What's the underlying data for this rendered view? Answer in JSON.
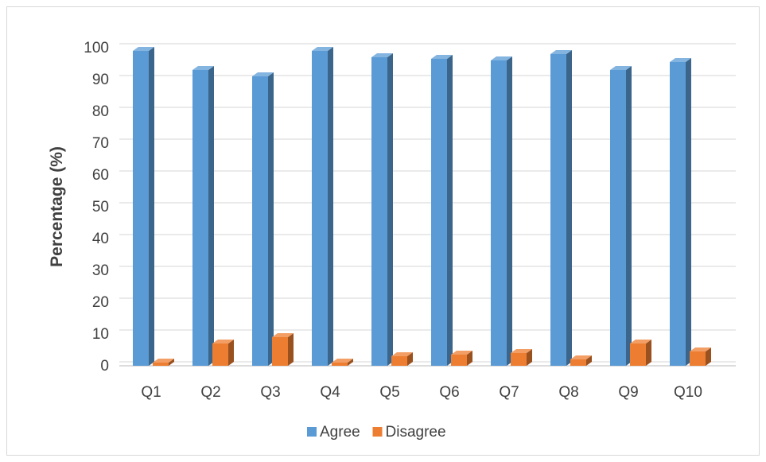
{
  "chart_data": {
    "type": "bar",
    "title": "",
    "xlabel": "",
    "ylabel": "Percentage (%)",
    "categories": [
      "Q1",
      "Q2",
      "Q3",
      "Q4",
      "Q5",
      "Q6",
      "Q7",
      "Q8",
      "Q9",
      "Q10"
    ],
    "series": [
      {
        "name": "Agree",
        "color": "#5b9bd5",
        "values": [
          99,
          93,
          91,
          99,
          97,
          96.5,
          96,
          98,
          93,
          95.5
        ]
      },
      {
        "name": "Disagree",
        "color": "#ed7d31",
        "values": [
          1,
          7,
          9,
          1,
          3,
          3.5,
          4,
          2,
          7,
          4.5
        ]
      }
    ],
    "yticks": [
      "0",
      "10",
      "20",
      "30",
      "40",
      "50",
      "60",
      "70",
      "80",
      "90",
      "100"
    ],
    "ylim": [
      0,
      100
    ],
    "grid": true,
    "legend": "bottom-center",
    "style": "3d-column"
  }
}
